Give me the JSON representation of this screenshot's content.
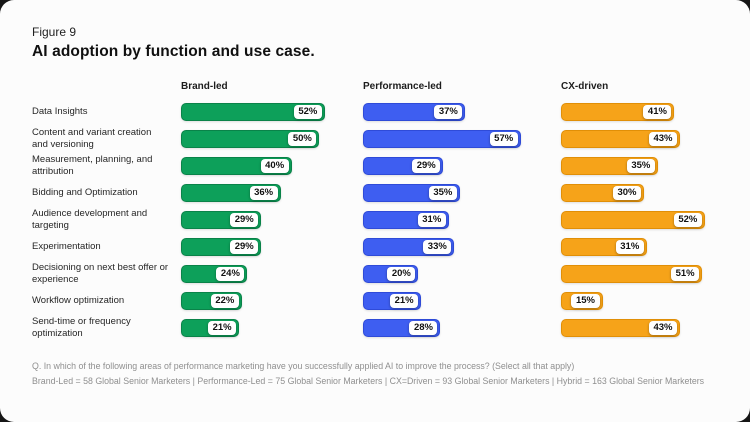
{
  "figure_label": "Figure 9",
  "title": "AI adoption by function and use case.",
  "footnote": {
    "question": "Q. In which of the following areas of performance marketing have you successfully applied AI to improve the process? (Select all that apply)",
    "sample": "Brand-Led = 58 Global Senior Marketers | Performance-Led = 75 Global Senior Marketers | CX=Driven = 93 Global Senior Marketers | Hybrid = 163 Global Senior Marketers"
  },
  "chart_data": {
    "type": "bar",
    "orientation": "horizontal",
    "layout": "small-multiples-by-series",
    "title": "AI adoption by function and use case.",
    "xlim": [
      0,
      60
    ],
    "value_suffix": "%",
    "grid": false,
    "legend_position": "column-headers-top",
    "categories": [
      "Data Insights",
      "Content and variant creation and versioning",
      "Measurement, planning, and attribution",
      "Bidding and Optimization",
      "Audience development and targeting",
      "Experimentation",
      "Decisioning on next best offer or experience",
      "Workflow optimization",
      "Send-time or frequency optimization"
    ],
    "series": [
      {
        "name": "Brand-led",
        "color": "#0DA05A",
        "border_color": "#0A8349",
        "values": [
          52,
          50,
          40,
          36,
          29,
          29,
          24,
          22,
          21
        ]
      },
      {
        "name": "Performance-led",
        "color": "#3E5EF1",
        "border_color": "#2F4BD8",
        "values": [
          37,
          57,
          29,
          35,
          31,
          33,
          20,
          21,
          28
        ]
      },
      {
        "name": "CX-driven",
        "color": "#F6A319",
        "border_color": "#E18F07",
        "values": [
          41,
          43,
          35,
          30,
          52,
          31,
          51,
          15,
          43
        ]
      }
    ]
  }
}
